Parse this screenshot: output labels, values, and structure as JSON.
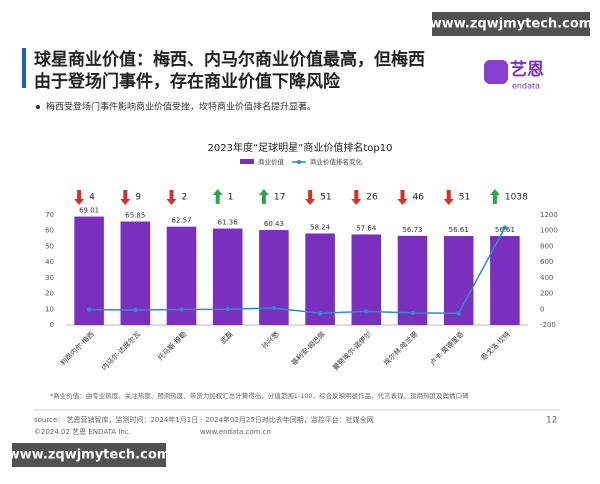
{
  "watermark": "www.zqwjmytech.com",
  "header": {
    "title_lines": [
      "球星商业价值：梅西、内马尔商业价值最高，但梅西",
      "由于登场门事件，存在商业价值下降风险"
    ],
    "logo_text": "艺恩",
    "logo_sub": "endata"
  },
  "bullet": "梅西受登场门事件影响商业价值受挫，坎特商业价值排名提升显著。",
  "chart_data": {
    "type": "bar",
    "title": "2023年度“足球明星”商业价值排名top10",
    "categories": [
      "利昂内尔·梅西",
      "内马尔·达席尔瓦",
      "托马斯·穆勒",
      "武磊",
      "孙兴慜",
      "基利安·姆巴佩",
      "曼努埃尔·诺伊尔",
      "埃尔林·哈兰德",
      "卢卡·莫德里奇",
      "恩戈洛·坎特"
    ],
    "series": [
      {
        "name": "商业价值",
        "color": "#7b2fbe",
        "values": [
          69.01,
          65.85,
          62.57,
          61.36,
          60.43,
          58.24,
          57.64,
          56.73,
          56.61,
          56.61
        ]
      },
      {
        "name": "商业价值排名变化",
        "color": "#2e8bc9",
        "axis": "y2",
        "type": "line",
        "values": [
          -4,
          -9,
          -2,
          1,
          17,
          -51,
          -26,
          -46,
          -51,
          1038
        ],
        "value_labels": [
          "4",
          "9",
          "2",
          "1",
          "17",
          "51",
          "26",
          "46",
          "51",
          "1038"
        ]
      }
    ],
    "ylim": [
      0,
      70
    ],
    "yticks": [
      0,
      10,
      20,
      30,
      40,
      50,
      60,
      70
    ],
    "y2lim": [
      -200,
      1200
    ],
    "y2ticks": [
      -200,
      0,
      200,
      400,
      600,
      800,
      1000,
      1200
    ],
    "legend": "top"
  },
  "footnote": "*商业价值：由专业热度、关注热度、预测热度、带货力加权汇总计算得出，分值范围1-100，综合反映明星作品、代言表现、运用热度及舆情口碑",
  "footer": {
    "source": "source： 艺恩营销智库，监测时间：2024年1月1日 - 2024年02月25日对比去年同期，监控平台：社媒全网",
    "page": "12",
    "copyright": "©2024.02 艺恩 ENDATA Inc.",
    "site": "www.endata.com.cn"
  }
}
